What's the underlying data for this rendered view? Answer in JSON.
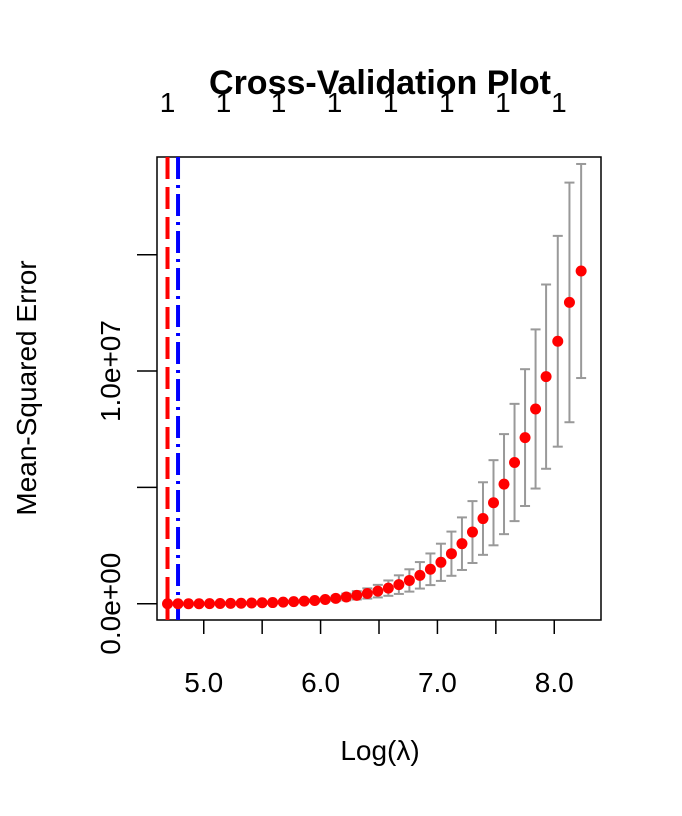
{
  "chart_data": {
    "type": "scatter",
    "title": "Cross-Validation Plot",
    "xlabel": "Log(λ)",
    "ylabel": "Mean-Squared Error",
    "xlim": [
      4.6,
      8.4
    ],
    "ylim": [
      -700000,
      19200000
    ],
    "x_ticks": [
      5.0,
      5.5,
      6.0,
      6.5,
      7.0,
      7.5,
      8.0
    ],
    "x_tick_labels": [
      "5.0",
      "",
      "6.0",
      "",
      "7.0",
      "",
      "8.0"
    ],
    "y_ticks": [
      0,
      5000000,
      10000000,
      15000000
    ],
    "y_tick_labels": [
      "0.0e+00",
      "",
      "1.0e+07",
      ""
    ],
    "top_ticks": [
      4.69,
      5.17,
      5.64,
      6.12,
      6.6,
      7.08,
      7.56,
      8.04
    ],
    "top_tick_labels": [
      "1",
      "1",
      "1",
      "1",
      "1",
      "1",
      "1",
      "1"
    ],
    "vlines": [
      {
        "x": 4.69,
        "color": "#ff0000",
        "style": "dashed"
      },
      {
        "x": 4.78,
        "color": "#0000ff",
        "style": "dotdash"
      }
    ],
    "series": [
      {
        "color": "#ff0000",
        "errorbar_color": "#999999",
        "points": [
          {
            "x": 4.69,
            "y": 0,
            "lo": 0,
            "hi": 0
          },
          {
            "x": 4.78,
            "y": 0,
            "lo": 0,
            "hi": 0
          },
          {
            "x": 4.87,
            "y": 0,
            "lo": 0,
            "hi": 0
          },
          {
            "x": 4.96,
            "y": 0,
            "lo": 0,
            "hi": 0
          },
          {
            "x": 5.05,
            "y": 5000,
            "lo": 0,
            "hi": 10000
          },
          {
            "x": 5.14,
            "y": 10000,
            "lo": 0,
            "hi": 20000
          },
          {
            "x": 5.23,
            "y": 15000,
            "lo": 5000,
            "hi": 25000
          },
          {
            "x": 5.32,
            "y": 20000,
            "lo": 10000,
            "hi": 30000
          },
          {
            "x": 5.41,
            "y": 30000,
            "lo": 15000,
            "hi": 45000
          },
          {
            "x": 5.5,
            "y": 40000,
            "lo": 20000,
            "hi": 60000
          },
          {
            "x": 5.59,
            "y": 50000,
            "lo": 25000,
            "hi": 75000
          },
          {
            "x": 5.68,
            "y": 70000,
            "lo": 35000,
            "hi": 105000
          },
          {
            "x": 5.77,
            "y": 90000,
            "lo": 45000,
            "hi": 135000
          },
          {
            "x": 5.86,
            "y": 110000,
            "lo": 55000,
            "hi": 165000
          },
          {
            "x": 5.95,
            "y": 140000,
            "lo": 70000,
            "hi": 210000
          },
          {
            "x": 6.04,
            "y": 180000,
            "lo": 90000,
            "hi": 270000
          },
          {
            "x": 6.13,
            "y": 230000,
            "lo": 115000,
            "hi": 345000
          },
          {
            "x": 6.22,
            "y": 290000,
            "lo": 145000,
            "hi": 435000
          },
          {
            "x": 6.31,
            "y": 360000,
            "lo": 180000,
            "hi": 540000
          },
          {
            "x": 6.4,
            "y": 440000,
            "lo": 220000,
            "hi": 660000
          },
          {
            "x": 6.49,
            "y": 540000,
            "lo": 270000,
            "hi": 810000
          },
          {
            "x": 6.58,
            "y": 670000,
            "lo": 340000,
            "hi": 1000000
          },
          {
            "x": 6.67,
            "y": 820000,
            "lo": 420000,
            "hi": 1220000
          },
          {
            "x": 6.76,
            "y": 1000000,
            "lo": 520000,
            "hi": 1480000
          },
          {
            "x": 6.85,
            "y": 1220000,
            "lo": 650000,
            "hi": 1790000
          },
          {
            "x": 6.94,
            "y": 1480000,
            "lo": 800000,
            "hi": 2160000
          },
          {
            "x": 7.03,
            "y": 1780000,
            "lo": 980000,
            "hi": 2580000
          },
          {
            "x": 7.12,
            "y": 2150000,
            "lo": 1200000,
            "hi": 3100000
          },
          {
            "x": 7.21,
            "y": 2580000,
            "lo": 1450000,
            "hi": 3710000
          },
          {
            "x": 7.3,
            "y": 3080000,
            "lo": 1750000,
            "hi": 4410000
          },
          {
            "x": 7.39,
            "y": 3660000,
            "lo": 2100000,
            "hi": 5220000
          },
          {
            "x": 7.48,
            "y": 4340000,
            "lo": 2510000,
            "hi": 6170000
          },
          {
            "x": 7.57,
            "y": 5140000,
            "lo": 2990000,
            "hi": 7290000
          },
          {
            "x": 7.66,
            "y": 6070000,
            "lo": 3550000,
            "hi": 8590000
          },
          {
            "x": 7.75,
            "y": 7140000,
            "lo": 4200000,
            "hi": 10080000
          },
          {
            "x": 7.84,
            "y": 8370000,
            "lo": 4950000,
            "hi": 11790000
          },
          {
            "x": 7.93,
            "y": 9760000,
            "lo": 5800000,
            "hi": 13720000
          },
          {
            "x": 8.03,
            "y": 11280000,
            "lo": 6750000,
            "hi": 15810000
          },
          {
            "x": 8.13,
            "y": 12950000,
            "lo": 7800000,
            "hi": 18100000
          },
          {
            "x": 8.23,
            "y": 14300000,
            "lo": 9700000,
            "hi": 18900000
          }
        ]
      }
    ]
  }
}
